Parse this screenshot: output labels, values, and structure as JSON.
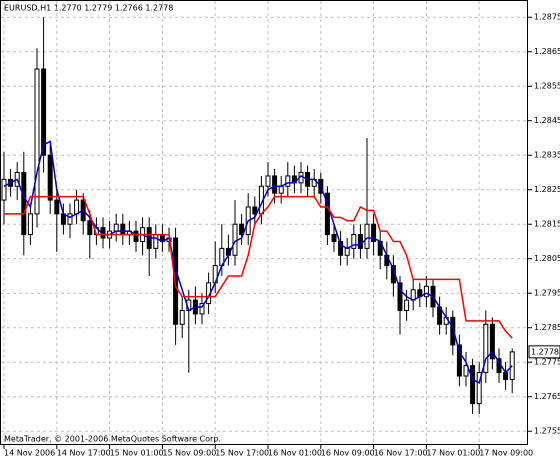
{
  "chart_data": {
    "type": "candlestick",
    "title": "EURUSD,H1  1.2770 1.2779 1.2766 1.2778",
    "footer": "MetaTrader, © 2001-2006 MetaQuotes Software Corp.",
    "categories": [
      "14 Nov 2006",
      null,
      null,
      null,
      null,
      null,
      null,
      null,
      "14 Nov 17:00",
      null,
      null,
      null,
      null,
      null,
      null,
      null,
      "15 Nov 01:00",
      null,
      null,
      null,
      null,
      null,
      null,
      null,
      "15 Nov 09:00",
      null,
      null,
      null,
      null,
      null,
      null,
      null,
      "15 Nov 17:00",
      null,
      null,
      null,
      null,
      null,
      null,
      null,
      "16 Nov 01:00",
      null,
      null,
      null,
      null,
      null,
      null,
      null,
      "16 Nov 09:00",
      null,
      null,
      null,
      null,
      null,
      null,
      null,
      "16 Nov 17:00",
      null,
      null,
      null,
      null,
      null,
      null,
      null,
      "17 Nov 01:00",
      null,
      null,
      null,
      null,
      null,
      null,
      null,
      "17 Nov 09:00",
      null,
      null,
      null,
      null,
      null
    ],
    "open": [
      1.2822,
      1.2828,
      1.2826,
      1.283,
      1.2812,
      1.2818,
      1.286,
      1.2835,
      1.2822,
      1.2818,
      1.2815,
      1.2818,
      1.2822,
      1.2816,
      1.2812,
      1.2814,
      1.2811,
      1.2813,
      1.2815,
      1.2812,
      1.2813,
      1.281,
      1.2814,
      1.2808,
      1.2812,
      1.281,
      1.2811,
      1.2786,
      1.279,
      1.2793,
      1.2789,
      1.2792,
      1.2798,
      1.2803,
      1.2808,
      1.2806,
      1.2815,
      1.2812,
      1.282,
      1.2818,
      1.2826,
      1.2829,
      1.2824,
      1.2826,
      1.2829,
      1.2827,
      1.283,
      1.2826,
      1.2828,
      1.2824,
      1.2812,
      1.281,
      1.2806,
      1.2808,
      1.2812,
      1.2808,
      1.2815,
      1.281,
      1.2806,
      1.2803,
      1.2798,
      1.279,
      1.2793,
      1.2796,
      1.2794,
      1.2797,
      1.2791,
      1.2786,
      1.2788,
      1.278,
      1.2771,
      1.2774,
      1.2763,
      1.2772,
      1.2786,
      1.2776,
      1.2772,
      1.277
    ],
    "high": [
      1.2836,
      1.2831,
      1.2833,
      1.2836,
      1.2821,
      1.2866,
      1.2875,
      1.2838,
      1.2825,
      1.2821,
      1.2821,
      1.2825,
      1.2824,
      1.2819,
      1.2817,
      1.2817,
      1.2816,
      1.2818,
      1.2818,
      1.2816,
      1.2816,
      1.2817,
      1.2817,
      1.2815,
      1.2815,
      1.2814,
      1.2814,
      1.2794,
      1.2796,
      1.2797,
      1.2795,
      1.2801,
      1.281,
      1.2815,
      1.2812,
      1.2822,
      1.2818,
      1.2824,
      1.2823,
      1.2829,
      1.2833,
      1.2831,
      1.2829,
      1.2833,
      1.2832,
      1.2833,
      1.2832,
      1.2831,
      1.283,
      1.2826,
      1.2815,
      1.2813,
      1.2811,
      1.2815,
      1.2815,
      1.284,
      1.2818,
      1.2813,
      1.281,
      1.2806,
      1.28,
      1.2796,
      1.2799,
      1.2798,
      1.28,
      1.2799,
      1.2794,
      1.2791,
      1.279,
      1.2783,
      1.2778,
      1.2776,
      1.2775,
      1.279,
      1.2788,
      1.2779,
      1.2775,
      1.2779
    ],
    "low": [
      1.2815,
      1.2823,
      1.2822,
      1.2806,
      1.2809,
      1.2814,
      1.283,
      1.2818,
      1.2807,
      1.2812,
      1.2811,
      1.2815,
      1.2812,
      1.2805,
      1.2809,
      1.2808,
      1.2808,
      1.281,
      1.2809,
      1.2809,
      1.2807,
      1.2806,
      1.28,
      1.2805,
      1.2807,
      1.2807,
      1.278,
      1.2782,
      1.2772,
      1.2786,
      1.2786,
      1.2789,
      1.2795,
      1.28,
      1.2803,
      1.2803,
      1.2809,
      1.2809,
      1.2815,
      1.2815,
      1.2823,
      1.2821,
      1.2821,
      1.2823,
      1.2824,
      1.2824,
      1.2823,
      1.2823,
      1.2821,
      1.2809,
      1.2807,
      1.2803,
      1.2803,
      1.2805,
      1.2805,
      1.2805,
      1.2806,
      1.2802,
      1.2799,
      1.2794,
      1.2783,
      1.2787,
      1.279,
      1.2791,
      1.2791,
      1.2788,
      1.2783,
      1.2783,
      1.2777,
      1.2768,
      1.2768,
      1.276,
      1.276,
      1.2769,
      1.2773,
      1.2769,
      1.2767,
      1.2766
    ],
    "close": [
      1.2828,
      1.2826,
      1.283,
      1.2812,
      1.2818,
      1.286,
      1.2835,
      1.2822,
      1.2818,
      1.2815,
      1.2818,
      1.2822,
      1.2816,
      1.2812,
      1.2814,
      1.2811,
      1.2813,
      1.2815,
      1.2812,
      1.2813,
      1.281,
      1.2814,
      1.2808,
      1.2812,
      1.281,
      1.2811,
      1.2786,
      1.279,
      1.2793,
      1.2789,
      1.2792,
      1.2798,
      1.2803,
      1.2808,
      1.2806,
      1.2815,
      1.2812,
      1.282,
      1.2818,
      1.2826,
      1.2829,
      1.2824,
      1.2826,
      1.2829,
      1.2827,
      1.283,
      1.2826,
      1.2828,
      1.2824,
      1.2812,
      1.281,
      1.2806,
      1.2808,
      1.2812,
      1.2808,
      1.2815,
      1.281,
      1.2806,
      1.2803,
      1.2798,
      1.279,
      1.2793,
      1.2796,
      1.2794,
      1.2797,
      1.2791,
      1.2786,
      1.2788,
      1.278,
      1.2771,
      1.2774,
      1.2763,
      1.2772,
      1.2786,
      1.2776,
      1.2772,
      1.277,
      1.2778
    ],
    "lines": [
      {
        "color": "#0000cc",
        "values": [
          1.2826,
          1.2827,
          1.2828,
          1.2823,
          1.282,
          1.283,
          1.2838,
          1.2839,
          1.2825,
          1.2818,
          1.2817,
          1.2818,
          1.2819,
          1.2817,
          1.2814,
          1.2812,
          1.2812,
          1.2813,
          1.2813,
          1.2813,
          1.2812,
          1.2812,
          1.2811,
          1.2811,
          1.281,
          1.2811,
          1.2802,
          1.2796,
          1.279,
          1.2791,
          1.2791,
          1.2794,
          1.2798,
          1.2803,
          1.2806,
          1.281,
          1.2811,
          1.2816,
          1.2817,
          1.2821,
          1.2825,
          1.2826,
          1.2826,
          1.2827,
          1.2827,
          1.2829,
          1.2828,
          1.2828,
          1.2826,
          1.2821,
          1.2815,
          1.2809,
          1.2808,
          1.2809,
          1.2809,
          1.2811,
          1.2811,
          1.281,
          1.2806,
          1.2802,
          1.2796,
          1.2794,
          1.2793,
          1.2794,
          1.2795,
          1.2794,
          1.2791,
          1.2788,
          1.2785,
          1.2778,
          1.2775,
          1.277,
          1.2769,
          1.2776,
          1.2778,
          1.2775,
          1.2772,
          1.2774
        ]
      },
      {
        "color": "#ff0000",
        "values": [
          1.2818,
          1.2818,
          1.2818,
          1.2818,
          1.2823,
          1.2823,
          1.2823,
          1.2823,
          1.2823,
          1.2823,
          1.2823,
          1.2823,
          1.2823,
          1.2818,
          1.2812,
          1.2812,
          1.2812,
          1.2812,
          1.2812,
          1.2812,
          1.2812,
          1.2812,
          1.2812,
          1.2812,
          1.2812,
          1.2812,
          1.2797,
          1.2794,
          1.2794,
          1.2794,
          1.2794,
          1.2794,
          1.2794,
          1.2797,
          1.28,
          1.28,
          1.28,
          1.2806,
          1.2815,
          1.2818,
          1.282,
          1.2823,
          1.2823,
          1.2823,
          1.2823,
          1.2823,
          1.2823,
          1.2823,
          1.282,
          1.282,
          1.2817,
          1.2817,
          1.2816,
          1.2816,
          1.282,
          1.2819,
          1.2819,
          1.2813,
          1.2813,
          1.281,
          1.281,
          1.2806,
          1.2799,
          1.2799,
          1.2799,
          1.2799,
          1.2799,
          1.2799,
          1.2799,
          1.2799,
          1.2787,
          1.2787,
          1.2787,
          1.2787,
          1.2787,
          1.2787,
          1.2784,
          1.2782
        ]
      }
    ],
    "bull_color": "#ffffff",
    "bear_color": "#000000",
    "ylim": [
      1.2751,
      1.288
    ],
    "yticks": [
      1.2755,
      1.2765,
      1.2775,
      1.2785,
      1.2795,
      1.2805,
      1.2815,
      1.2825,
      1.2835,
      1.2845,
      1.2855,
      1.2865,
      1.2875
    ],
    "grid": true
  }
}
